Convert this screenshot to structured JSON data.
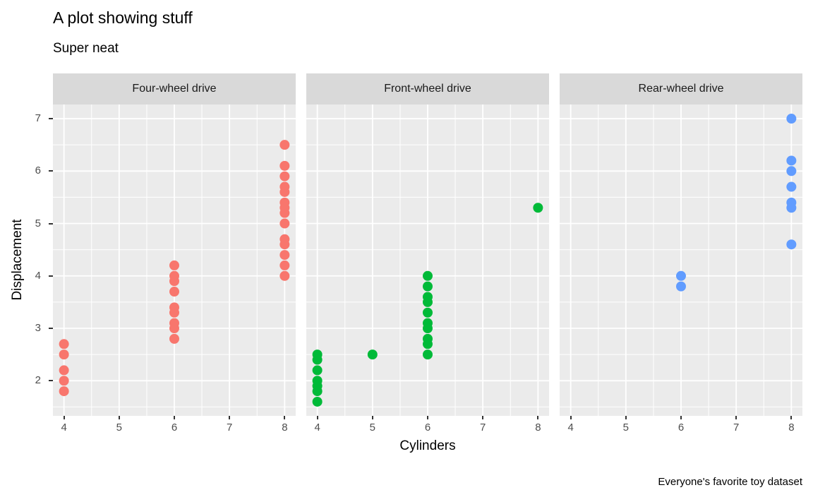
{
  "header": {
    "title": "A plot showing stuff",
    "subtitle": "Super neat"
  },
  "chart_data": {
    "type": "scatter",
    "title": "A plot showing stuff",
    "subtitle": "Super neat",
    "caption": "Everyone's favorite toy dataset",
    "xlabel": "Cylinders",
    "ylabel": "Displacement",
    "x_domain": [
      3.8,
      8.2
    ],
    "y_domain": [
      1.33,
      7.27
    ],
    "x_ticks": [
      4,
      5,
      6,
      7,
      8
    ],
    "y_ticks": [
      7,
      6,
      5,
      4,
      3,
      2
    ],
    "x_minor": [
      4.5,
      5.5,
      6.5,
      7.5
    ],
    "y_minor": [
      6.5,
      5.5,
      4.5,
      3.5,
      2.5,
      1.5
    ],
    "grid": "on",
    "legend": "none",
    "panel_bg": "#EBEBEB",
    "strip_bg": "#D9D9D9",
    "grid_color": "#FFFFFF",
    "facets": [
      {
        "label": "Four-wheel drive",
        "color": "#F8766D",
        "points": [
          [
            4,
            2.7
          ],
          [
            4,
            2.5
          ],
          [
            4,
            2.2
          ],
          [
            4,
            2.0
          ],
          [
            4,
            1.8
          ],
          [
            6,
            4.2
          ],
          [
            6,
            4.0
          ],
          [
            6,
            3.9
          ],
          [
            6,
            3.7
          ],
          [
            6,
            3.4
          ],
          [
            6,
            3.3
          ],
          [
            6,
            3.1
          ],
          [
            6,
            3.0
          ],
          [
            6,
            2.8
          ],
          [
            8,
            6.5
          ],
          [
            8,
            6.1
          ],
          [
            8,
            5.9
          ],
          [
            8,
            5.7
          ],
          [
            8,
            5.6
          ],
          [
            8,
            5.4
          ],
          [
            8,
            5.3
          ],
          [
            8,
            5.2
          ],
          [
            8,
            5.0
          ],
          [
            8,
            4.7
          ],
          [
            8,
            4.6
          ],
          [
            8,
            4.4
          ],
          [
            8,
            4.2
          ],
          [
            8,
            4.0
          ]
        ]
      },
      {
        "label": "Front-wheel drive",
        "color": "#00BA38",
        "points": [
          [
            4,
            2.5
          ],
          [
            4,
            2.4
          ],
          [
            4,
            2.2
          ],
          [
            4,
            2.0
          ],
          [
            4,
            1.9
          ],
          [
            4,
            1.8
          ],
          [
            4,
            1.6
          ],
          [
            5,
            2.5
          ],
          [
            6,
            4.0
          ],
          [
            6,
            3.8
          ],
          [
            6,
            3.6
          ],
          [
            6,
            3.5
          ],
          [
            6,
            3.3
          ],
          [
            6,
            3.1
          ],
          [
            6,
            3.0
          ],
          [
            6,
            2.8
          ],
          [
            6,
            2.7
          ],
          [
            6,
            2.5
          ],
          [
            8,
            5.3
          ]
        ]
      },
      {
        "label": "Rear-wheel drive",
        "color": "#619CFF",
        "points": [
          [
            6,
            4.0
          ],
          [
            6,
            3.8
          ],
          [
            8,
            7.0
          ],
          [
            8,
            6.2
          ],
          [
            8,
            6.0
          ],
          [
            8,
            5.7
          ],
          [
            8,
            5.4
          ],
          [
            8,
            5.3
          ],
          [
            8,
            4.6
          ]
        ]
      }
    ]
  }
}
